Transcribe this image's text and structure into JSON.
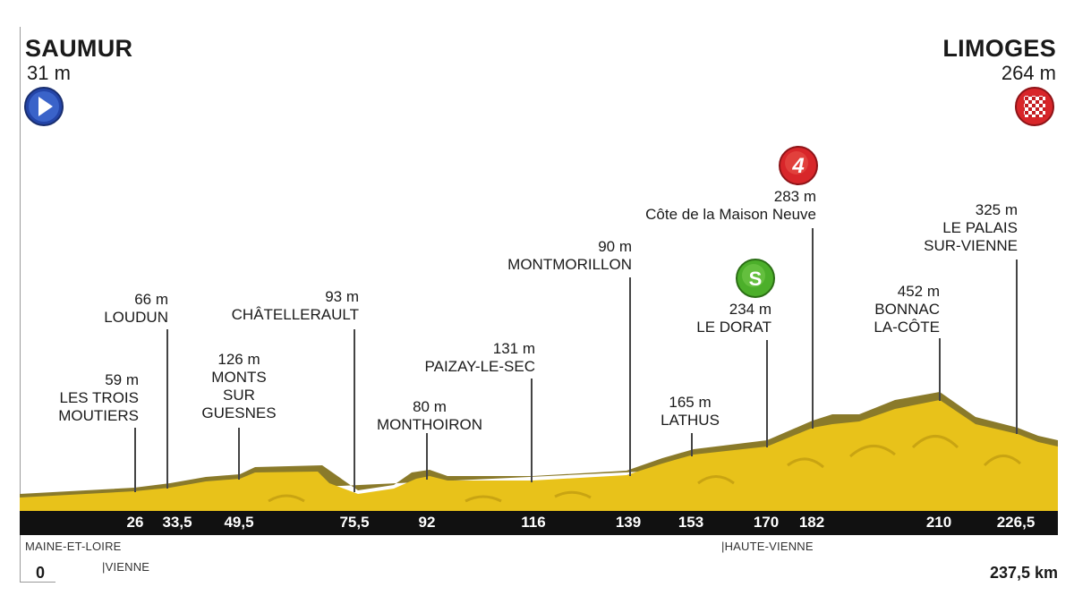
{
  "start": {
    "name": "SAUMUR",
    "altitude": "31 m"
  },
  "finish": {
    "name": "LIMOGES",
    "altitude": "264 m"
  },
  "total_distance": "237,5 km",
  "start_km": "0",
  "departments": [
    {
      "text": "MAINE-ET-LOIRE"
    },
    {
      "text": "|VIENNE"
    },
    {
      "text": "|HAUTE-VIENNE"
    }
  ],
  "km_markers": [
    "26",
    "33,5",
    "49,5",
    "75,5",
    "92",
    "116",
    "139",
    "153",
    "170",
    "182",
    "210",
    "226,5"
  ],
  "waypoints": [
    {
      "km": "26",
      "lines": [
        "59 m",
        "LES TROIS",
        "MOUTIERS"
      ]
    },
    {
      "km": "33,5",
      "lines": [
        "66 m",
        "LOUDUN"
      ]
    },
    {
      "km": "49,5",
      "lines": [
        "126 m",
        "MONTS",
        "SUR",
        "GUESNES"
      ]
    },
    {
      "km": "75,5",
      "lines": [
        "93 m",
        "CHÂTELLERAULT"
      ]
    },
    {
      "km": "92",
      "lines": [
        "80 m",
        "MONTHOIRON"
      ]
    },
    {
      "km": "116",
      "lines": [
        "131 m",
        "PAIZAY-LE-SEC"
      ]
    },
    {
      "km": "139",
      "lines": [
        "90 m",
        "MONTMORILLON"
      ]
    },
    {
      "km": "153",
      "lines": [
        "165 m",
        "LATHUS"
      ]
    },
    {
      "km": "170",
      "lines": [
        "234 m",
        "LE DORAT"
      ]
    },
    {
      "km": "182",
      "lines": [
        "283 m",
        "Côte de la Maison Neuve"
      ]
    },
    {
      "km": "210",
      "lines": [
        "452 m",
        "BONNAC",
        "LA-CÔTE"
      ]
    },
    {
      "km": "226,5",
      "lines": [
        "325 m",
        "LE PALAIS",
        "SUR-VIENNE"
      ]
    }
  ],
  "badges": {
    "start_icon": "play-icon",
    "finish_icon": "checkered-flag-icon",
    "sprint": {
      "label": "S",
      "icon": "intermediate-sprint-icon",
      "color": "#4caf2a"
    },
    "climb": {
      "label": "4",
      "icon": "climb-category-4-icon",
      "color": "#d8262a"
    }
  },
  "colors": {
    "profile_fill": "#e8c21a",
    "profile_dark": "#8a7a2a",
    "axis": "#111111",
    "start_badge": "#2445a8",
    "finish_badge": "#d8262a"
  },
  "chart_data": {
    "type": "area",
    "x_unit": "km",
    "y_unit": "m",
    "xlim": [
      0,
      237.5
    ],
    "points": [
      {
        "km": 0,
        "alt": 31
      },
      {
        "km": 26,
        "alt": 59
      },
      {
        "km": 33.5,
        "alt": 66
      },
      {
        "km": 40,
        "alt": 95
      },
      {
        "km": 49.5,
        "alt": 126
      },
      {
        "km": 60,
        "alt": 118
      },
      {
        "km": 75.5,
        "alt": 93
      },
      {
        "km": 92,
        "alt": 80
      },
      {
        "km": 100,
        "alt": 104
      },
      {
        "km": 116,
        "alt": 131
      },
      {
        "km": 139,
        "alt": 90
      },
      {
        "km": 153,
        "alt": 165
      },
      {
        "km": 170,
        "alt": 234
      },
      {
        "km": 182,
        "alt": 283
      },
      {
        "km": 195,
        "alt": 360
      },
      {
        "km": 210,
        "alt": 452
      },
      {
        "km": 226.5,
        "alt": 325
      },
      {
        "km": 237.5,
        "alt": 264
      }
    ]
  }
}
